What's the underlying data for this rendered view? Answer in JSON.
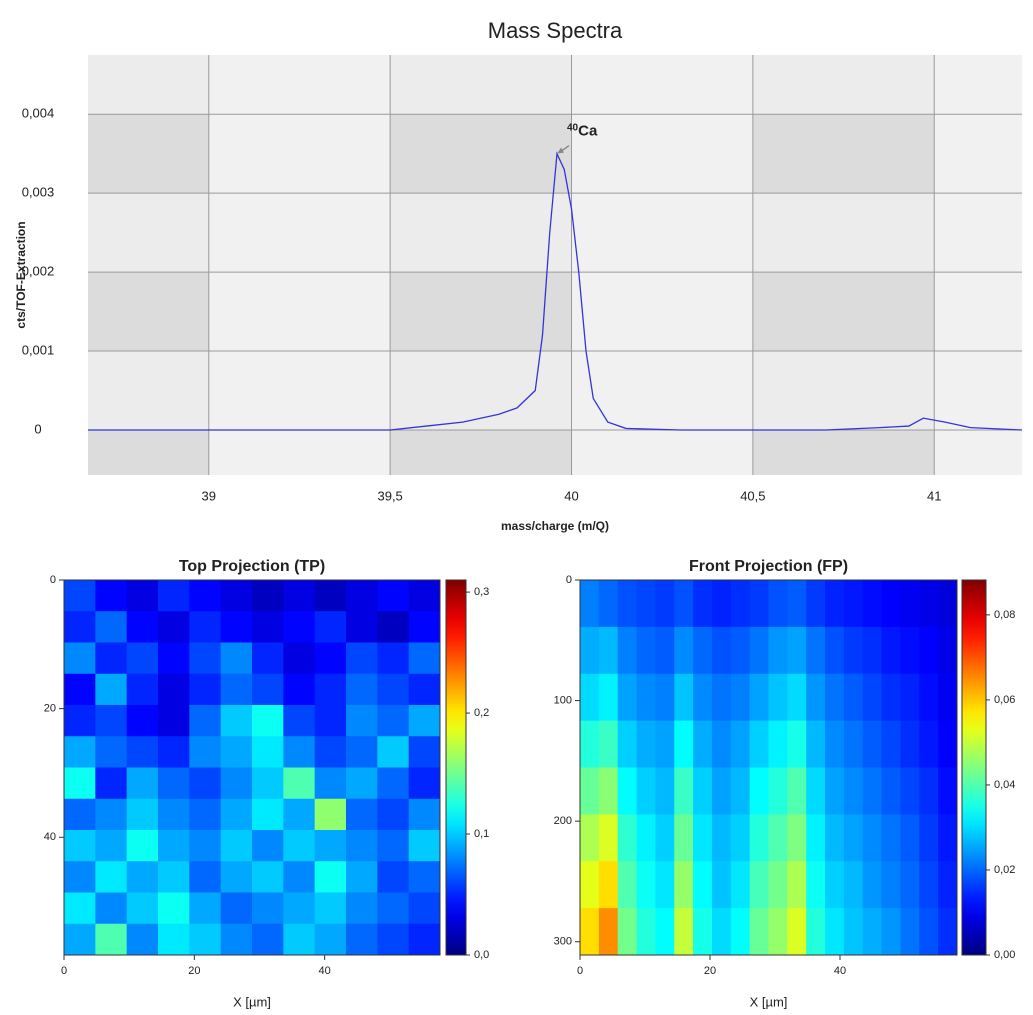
{
  "chart_data": [
    {
      "type": "line",
      "title": "Mass Spectra",
      "x_label": "mass/charge (m/Q)",
      "y_label": "cts/TOF-Extraction",
      "color": "#3333dd",
      "x": [
        38.667,
        39.5,
        39.6,
        39.7,
        39.8,
        39.85,
        39.9,
        39.92,
        39.94,
        39.96,
        39.98,
        40.0,
        40.02,
        40.04,
        40.06,
        40.1,
        40.15,
        40.3,
        40.7,
        40.85,
        40.93,
        40.97,
        41.03,
        41.1,
        41.242
      ],
      "values": [
        0,
        0,
        5e-05,
        0.0001,
        0.0002,
        0.00028,
        0.0005,
        0.0012,
        0.0025,
        0.0035,
        0.0033,
        0.0028,
        0.002,
        0.001,
        0.0004,
        0.0001,
        2e-05,
        0,
        0,
        3e-05,
        5e-05,
        0.00015,
        0.0001,
        3e-05,
        0
      ],
      "annotation": {
        "superscript": "40",
        "text": "Ca"
      },
      "xlim": [
        38.667,
        41.242
      ],
      "ylim": [
        -0.00057,
        0.00475
      ],
      "xticks": [
        39,
        {
          "value": 39.5,
          "label": "39,5"
        },
        40,
        {
          "value": 40.5,
          "label": "40,5"
        },
        41
      ],
      "yticks": [
        0,
        {
          "value": 0.001,
          "label": "0,001"
        },
        {
          "value": 0.002,
          "label": "0,002"
        },
        {
          "value": 0.003,
          "label": "0,003"
        },
        {
          "value": 0.004,
          "label": "0,004"
        }
      ],
      "grid": true
    },
    {
      "type": "heatmap",
      "title": "Top Projection (TP)",
      "x_label": "X [µm]",
      "colormap": "jet",
      "xlim": [
        0,
        57.7
      ],
      "ylim": [
        0,
        58.3
      ],
      "xticks": [
        0,
        20,
        40
      ],
      "yticks": [
        0,
        20,
        40
      ],
      "clim": [
        0,
        0.31
      ],
      "cticks": [
        {
          "value": 0,
          "label": "0,0"
        },
        {
          "value": 0.1,
          "label": "0,1"
        },
        {
          "value": 0.2,
          "label": "0,2"
        },
        {
          "value": 0.3,
          "label": "0,3"
        }
      ],
      "z": [
        [
          0.06,
          0.04,
          0.03,
          0.05,
          0.04,
          0.03,
          0.02,
          0.03,
          0.02,
          0.03,
          0.04,
          0.03
        ],
        [
          0.05,
          0.07,
          0.04,
          0.03,
          0.05,
          0.04,
          0.03,
          0.04,
          0.05,
          0.03,
          0.02,
          0.04
        ],
        [
          0.08,
          0.05,
          0.06,
          0.04,
          0.06,
          0.08,
          0.05,
          0.03,
          0.04,
          0.06,
          0.05,
          0.07
        ],
        [
          0.04,
          0.09,
          0.05,
          0.03,
          0.05,
          0.07,
          0.06,
          0.04,
          0.05,
          0.07,
          0.06,
          0.05
        ],
        [
          0.05,
          0.06,
          0.04,
          0.03,
          0.07,
          0.1,
          0.12,
          0.06,
          0.05,
          0.08,
          0.07,
          0.09
        ],
        [
          0.09,
          0.07,
          0.06,
          0.05,
          0.08,
          0.09,
          0.11,
          0.08,
          0.06,
          0.07,
          0.1,
          0.06
        ],
        [
          0.12,
          0.05,
          0.09,
          0.07,
          0.06,
          0.08,
          0.1,
          0.14,
          0.08,
          0.09,
          0.07,
          0.05
        ],
        [
          0.07,
          0.08,
          0.1,
          0.08,
          0.07,
          0.09,
          0.11,
          0.09,
          0.16,
          0.07,
          0.06,
          0.08
        ],
        [
          0.1,
          0.09,
          0.12,
          0.09,
          0.08,
          0.1,
          0.08,
          0.1,
          0.09,
          0.08,
          0.07,
          0.1
        ],
        [
          0.08,
          0.11,
          0.09,
          0.1,
          0.07,
          0.09,
          0.1,
          0.08,
          0.12,
          0.09,
          0.06,
          0.07
        ],
        [
          0.11,
          0.08,
          0.1,
          0.12,
          0.09,
          0.07,
          0.08,
          0.09,
          0.1,
          0.08,
          0.07,
          0.06
        ],
        [
          0.09,
          0.14,
          0.08,
          0.11,
          0.1,
          0.08,
          0.07,
          0.1,
          0.09,
          0.07,
          0.06,
          0.05
        ]
      ]
    },
    {
      "type": "heatmap",
      "title": "Front Projection (FP)",
      "x_label": "X [µm]",
      "colormap": "jet",
      "xlim": [
        0,
        58
      ],
      "ylim": [
        0,
        311
      ],
      "xticks": [
        0,
        20,
        40
      ],
      "yticks": [
        0,
        100,
        200,
        300
      ],
      "clim": [
        0,
        0.0882
      ],
      "cticks": [
        {
          "value": 0,
          "label": "0,00"
        },
        {
          "value": 0.02,
          "label": "0,02"
        },
        {
          "value": 0.04,
          "label": "0,04"
        },
        {
          "value": 0.06,
          "label": "0,06"
        },
        {
          "value": 0.08,
          "label": "0,08"
        }
      ],
      "z": [
        [
          0.022,
          0.02,
          0.018,
          0.017,
          0.016,
          0.018,
          0.015,
          0.014,
          0.015,
          0.016,
          0.018,
          0.019,
          0.016,
          0.014,
          0.013,
          0.012,
          0.011,
          0.01,
          0.009,
          0.008
        ],
        [
          0.026,
          0.027,
          0.022,
          0.02,
          0.019,
          0.023,
          0.02,
          0.018,
          0.019,
          0.021,
          0.024,
          0.025,
          0.021,
          0.018,
          0.016,
          0.015,
          0.013,
          0.012,
          0.011,
          0.009
        ],
        [
          0.03,
          0.032,
          0.025,
          0.023,
          0.022,
          0.028,
          0.023,
          0.021,
          0.022,
          0.025,
          0.028,
          0.03,
          0.024,
          0.021,
          0.019,
          0.017,
          0.015,
          0.014,
          0.012,
          0.01
        ],
        [
          0.036,
          0.038,
          0.029,
          0.026,
          0.025,
          0.033,
          0.026,
          0.023,
          0.025,
          0.029,
          0.032,
          0.035,
          0.027,
          0.023,
          0.021,
          0.019,
          0.017,
          0.015,
          0.013,
          0.011
        ],
        [
          0.042,
          0.045,
          0.033,
          0.029,
          0.027,
          0.038,
          0.029,
          0.025,
          0.027,
          0.033,
          0.036,
          0.04,
          0.03,
          0.025,
          0.023,
          0.021,
          0.019,
          0.017,
          0.015,
          0.012
        ],
        [
          0.048,
          0.052,
          0.037,
          0.032,
          0.029,
          0.042,
          0.031,
          0.027,
          0.029,
          0.036,
          0.04,
          0.044,
          0.032,
          0.027,
          0.025,
          0.023,
          0.021,
          0.019,
          0.016,
          0.013
        ],
        [
          0.053,
          0.058,
          0.04,
          0.034,
          0.031,
          0.046,
          0.033,
          0.028,
          0.031,
          0.039,
          0.043,
          0.048,
          0.034,
          0.029,
          0.027,
          0.024,
          0.022,
          0.02,
          0.017,
          0.014
        ],
        [
          0.058,
          0.065,
          0.043,
          0.036,
          0.033,
          0.05,
          0.035,
          0.03,
          0.033,
          0.042,
          0.046,
          0.052,
          0.036,
          0.031,
          0.028,
          0.026,
          0.024,
          0.021,
          0.018,
          0.015
        ]
      ]
    }
  ]
}
